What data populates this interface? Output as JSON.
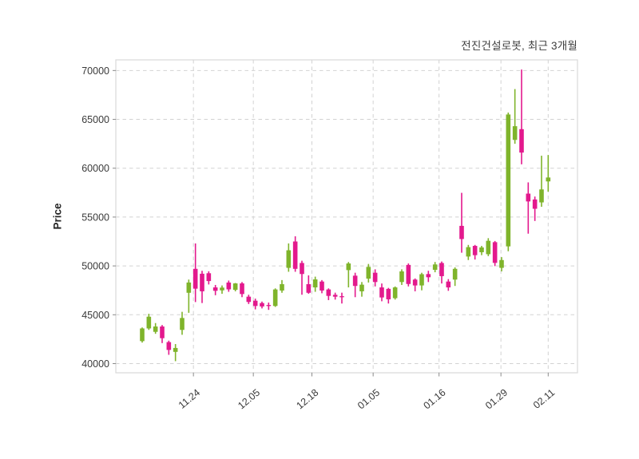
{
  "title": "전진건설로봇, 최근 3개월",
  "chart_data": {
    "type": "candlestick",
    "title": "전진건설로봇, 최근 3개월",
    "xlabel": "",
    "ylabel": "Price",
    "grid": true,
    "legend": "none",
    "ylim": [
      39060,
      71090
    ],
    "y_ticks": [
      40000,
      45000,
      50000,
      55000,
      60000,
      65000,
      70000
    ],
    "x_ticks": [
      {
        "label": "11.24",
        "index": 7.7
      },
      {
        "label": "12.05",
        "index": 16.7
      },
      {
        "label": "12.18",
        "index": 25.5
      },
      {
        "label": "01.05",
        "index": 34.7
      },
      {
        "label": "01.16",
        "index": 44.6
      },
      {
        "label": "01.29",
        "index": 53.9
      },
      {
        "label": "02.11",
        "index": 61.0
      }
    ],
    "up_color": "#7FB42B",
    "down_color": "#E3198D",
    "grid_color": "#d2d2d2",
    "spine_color": "#d8d8d8",
    "tick_text_color": "#3a3a3a",
    "candles_ohlc": [
      [
        42300,
        43700,
        42150,
        43600
      ],
      [
        43600,
        45100,
        43450,
        44800
      ],
      [
        43250,
        44150,
        43050,
        43800
      ],
      [
        43800,
        43950,
        42100,
        42600
      ],
      [
        42200,
        42350,
        40900,
        41400
      ],
      [
        41200,
        42000,
        40250,
        41600
      ],
      [
        43450,
        45300,
        42950,
        44670
      ],
      [
        47250,
        48600,
        45200,
        48300
      ],
      [
        49700,
        52300,
        46300,
        47670
      ],
      [
        49200,
        49500,
        46200,
        47400
      ],
      [
        49250,
        49450,
        48100,
        48450
      ],
      [
        47800,
        48050,
        47000,
        47450
      ],
      [
        47500,
        48000,
        47150,
        47780
      ],
      [
        48300,
        48500,
        47350,
        47600
      ],
      [
        47550,
        48250,
        47400,
        48210
      ],
      [
        48210,
        48350,
        46800,
        47120
      ],
      [
        46850,
        47050,
        46100,
        46310
      ],
      [
        46440,
        46650,
        45550,
        45900
      ],
      [
        46200,
        46350,
        45650,
        45850
      ],
      [
        46000,
        46250,
        45500,
        45920
      ],
      [
        45900,
        47700,
        45800,
        47590
      ],
      [
        47480,
        48550,
        47250,
        48130
      ],
      [
        49800,
        52300,
        49400,
        51600
      ],
      [
        52500,
        53030,
        49400,
        49700
      ],
      [
        50300,
        50530,
        47050,
        49170
      ],
      [
        48130,
        49030,
        47150,
        47250
      ],
      [
        47800,
        48900,
        47350,
        48620
      ],
      [
        48400,
        48550,
        47200,
        47480
      ],
      [
        47590,
        47700,
        46500,
        46930
      ],
      [
        47040,
        47260,
        46550,
        46850
      ],
      [
        46900,
        47260,
        46150,
        46800
      ],
      [
        49570,
        50400,
        47800,
        50250
      ],
      [
        49000,
        49300,
        46800,
        47950
      ],
      [
        47400,
        48350,
        46850,
        48080
      ],
      [
        48700,
        50200,
        48300,
        49900
      ],
      [
        49300,
        49650,
        47900,
        48350
      ],
      [
        47800,
        48200,
        46380,
        46770
      ],
      [
        47650,
        47750,
        46150,
        46580
      ],
      [
        46700,
        47900,
        46550,
        47800
      ],
      [
        48350,
        49650,
        48050,
        49440
      ],
      [
        50100,
        50250,
        47900,
        48150
      ],
      [
        48600,
        48720,
        47400,
        48000
      ],
      [
        48000,
        49300,
        47500,
        49150
      ],
      [
        49165,
        49500,
        48350,
        48840
      ],
      [
        49600,
        50400,
        49350,
        50150
      ],
      [
        50300,
        50450,
        48200,
        48950
      ],
      [
        48400,
        48650,
        47450,
        47800
      ],
      [
        48600,
        49850,
        47950,
        49700
      ],
      [
        54100,
        57480,
        51350,
        52750
      ],
      [
        50960,
        52150,
        50600,
        51920
      ],
      [
        52050,
        52150,
        50650,
        51100
      ],
      [
        51400,
        52050,
        51100,
        51890
      ],
      [
        51200,
        52840,
        51000,
        52570
      ],
      [
        52430,
        52550,
        49980,
        50310
      ],
      [
        49800,
        50900,
        49440,
        50600
      ],
      [
        52000,
        65700,
        51500,
        65500
      ],
      [
        62900,
        68100,
        62500,
        64300
      ],
      [
        64000,
        70100,
        60400,
        61600
      ],
      [
        57400,
        58550,
        53300,
        56600
      ],
      [
        56800,
        57100,
        54600,
        55850
      ],
      [
        56500,
        61280,
        56050,
        57830
      ],
      [
        58650,
        61350,
        57600,
        59050
      ]
    ]
  }
}
